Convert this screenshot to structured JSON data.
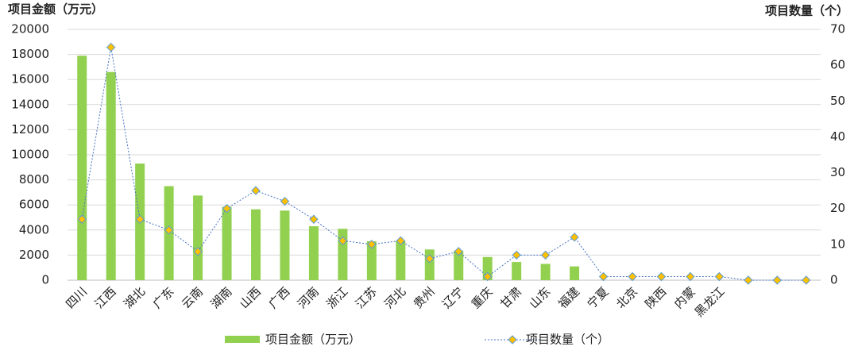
{
  "chart_data": {
    "type": "bar_line",
    "y_label": "项目金额（万元）",
    "y2_label": "项目数量（个）",
    "categories": [
      "四川",
      "江西",
      "湖北",
      "广东",
      "云南",
      "湖南",
      "山西",
      "广西",
      "河南",
      "浙江",
      "江苏",
      "河北",
      "贵州",
      "辽宁",
      "重庆",
      "甘肃",
      "山东",
      "福建",
      "宁夏",
      "北京",
      "陕西",
      "内蒙",
      "黑龙江",
      null,
      null,
      null
    ],
    "series": [
      {
        "name": "项目金额（万元）",
        "type": "bar",
        "color": "#92d050",
        "values": [
          17900,
          16600,
          9300,
          7500,
          6750,
          5850,
          5650,
          5550,
          4300,
          4100,
          3100,
          3150,
          2450,
          2350,
          1850,
          1450,
          1300,
          1100,
          0,
          0,
          0,
          0,
          0,
          0,
          0,
          0
        ]
      },
      {
        "name": "项目数量（个）",
        "type": "line",
        "axis": "y2",
        "color": "#4472c4",
        "marker_color": "#ffc000",
        "values": [
          17,
          65,
          17,
          14,
          8,
          20,
          25,
          22,
          17,
          11,
          10,
          11,
          6,
          8,
          1,
          7,
          7,
          12,
          1,
          1,
          1,
          1,
          1,
          0,
          0,
          0
        ]
      }
    ],
    "ylim": [
      0,
      20000
    ],
    "yticks": [
      0,
      2000,
      4000,
      6000,
      8000,
      10000,
      12000,
      14000,
      16000,
      18000,
      20000
    ],
    "y2lim": [
      0,
      70
    ],
    "y2ticks": [
      0,
      10,
      20,
      30,
      40,
      50,
      60,
      70
    ],
    "grid": true,
    "legend": "bottom"
  }
}
